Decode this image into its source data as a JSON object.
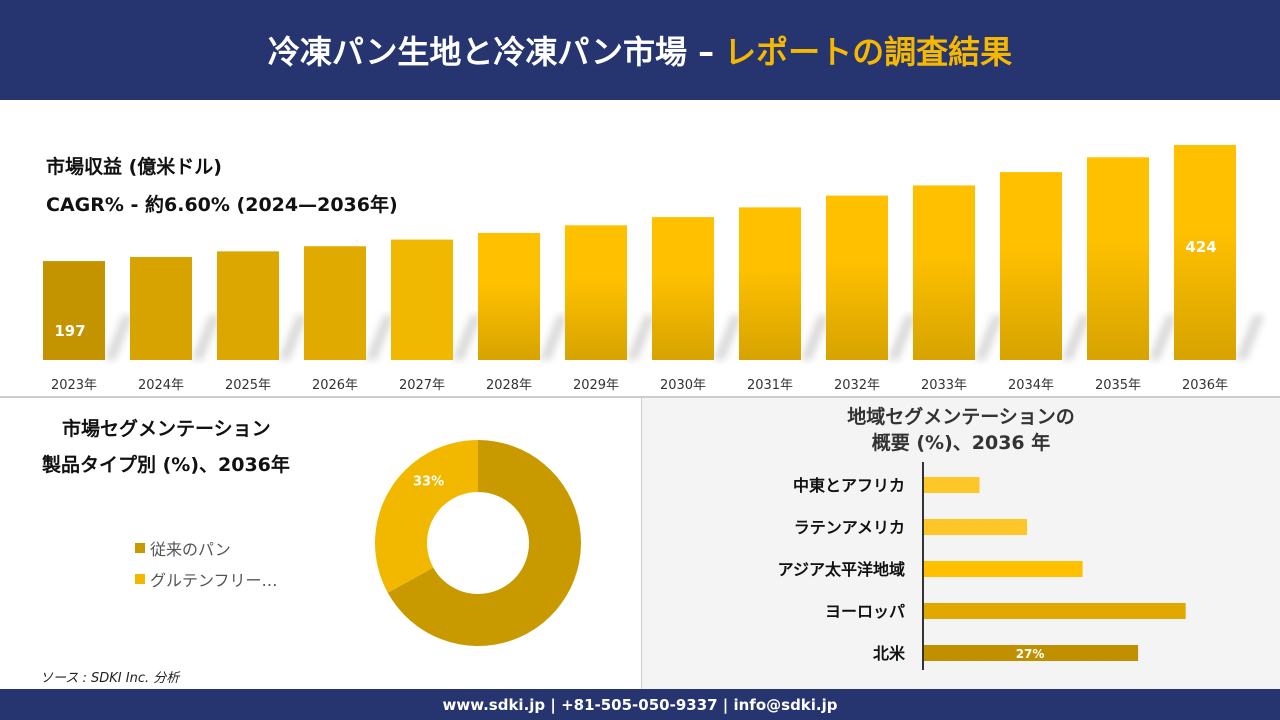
{
  "header": {
    "title": "冷凍パン生地と冷凍パン市場 –",
    "title_accent": "レポートの調査結果"
  },
  "colors": {
    "header_bg": "#263470",
    "accent": "#F5B800",
    "bar_dark": "#C99A00",
    "bar_light": "#FFC000"
  },
  "chart_data": [
    {
      "type": "bar",
      "title": "市場収益 (億米ドル)",
      "subtitle": "CAGR% - 約6.60% (2024—2036年)",
      "categories": [
        "2023年",
        "2024年",
        "2025年",
        "2026年",
        "2027年",
        "2028年",
        "2029年",
        "2030年",
        "2031年",
        "2032年",
        "2033年",
        "2034年",
        "2035年",
        "2036年"
      ],
      "values": [
        197,
        205,
        216,
        226,
        239,
        252,
        267,
        283,
        302,
        325,
        345,
        371,
        400,
        424
      ],
      "data_labels": {
        "0": "197",
        "13": "424"
      },
      "ylim": [
        115,
        424
      ],
      "grid": false
    },
    {
      "type": "pie",
      "title": "市場セグメンテーション",
      "subtitle": "製品タイプ別 (%)、2036年",
      "donut": true,
      "categories": [
        "従来のパン",
        "グルテンフリー…"
      ],
      "values": [
        67,
        33
      ],
      "colors": [
        "#C99A00",
        "#F2B800"
      ],
      "data_labels": {
        "1": "33%"
      },
      "legend": "left"
    },
    {
      "type": "bar",
      "orientation": "horizontal",
      "title": "地域セグメンテーションの",
      "title2": "概要 (%)、2036 年",
      "categories": [
        "中東とアフリカ",
        "ラテンアメリカ",
        "アジア太平洋地域",
        "ヨーロッパ",
        "北米"
      ],
      "values": [
        7,
        13,
        20,
        33,
        27
      ],
      "colors": [
        "#FFC62A",
        "#FFC62A",
        "#FFC000",
        "#E0A800",
        "#C09000"
      ],
      "data_labels": {
        "4": "27%"
      }
    }
  ],
  "source": "ソース : SDKI Inc. 分析",
  "footer": "www.sdki.jp | +81-505-050-9337 | info@sdki.jp"
}
